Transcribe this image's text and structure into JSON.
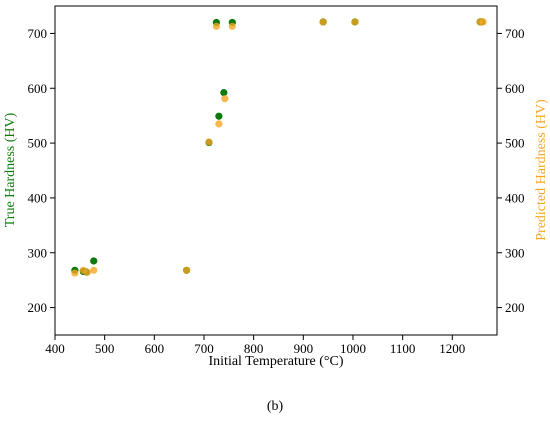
{
  "colors": {
    "true_series": "#0e7a0d",
    "predicted_series": "#f5a623",
    "overlap": "#a08c0c",
    "axis": "#000000"
  },
  "panel_label": "(b)",
  "chart_data": {
    "type": "scatter",
    "xlabel": "Initial Temperature (°C)",
    "ylabel_left": "True Hardness (HV)",
    "ylabel_right": "Predicted Hardness (HV)",
    "xlim": [
      400,
      1290
    ],
    "ylim": [
      150,
      750
    ],
    "xticks": [
      400,
      500,
      600,
      700,
      800,
      900,
      1000,
      1100,
      1200
    ],
    "yticks": [
      200,
      300,
      400,
      500,
      600,
      700
    ],
    "grid": false,
    "series": [
      {
        "key": "true",
        "axis": "left",
        "points": [
          [
            440,
            268
          ],
          [
            457,
            266
          ],
          [
            463,
            265
          ],
          [
            478,
            285
          ],
          [
            665,
            268
          ],
          [
            710,
            501
          ],
          [
            725,
            720
          ],
          [
            730,
            549
          ],
          [
            740,
            592
          ],
          [
            757,
            720
          ],
          [
            940,
            721
          ],
          [
            1004,
            721
          ],
          [
            1256,
            721
          ],
          [
            1259,
            721
          ]
        ]
      },
      {
        "key": "predicted",
        "axis": "right",
        "points": [
          [
            440,
            263
          ],
          [
            457,
            268
          ],
          [
            465,
            264
          ],
          [
            478,
            268
          ],
          [
            665,
            268
          ],
          [
            710,
            502
          ],
          [
            725,
            713
          ],
          [
            730,
            535
          ],
          [
            742,
            581
          ],
          [
            757,
            713
          ],
          [
            940,
            721
          ],
          [
            1004,
            721
          ],
          [
            1256,
            721
          ],
          [
            1262,
            721
          ]
        ]
      }
    ]
  }
}
